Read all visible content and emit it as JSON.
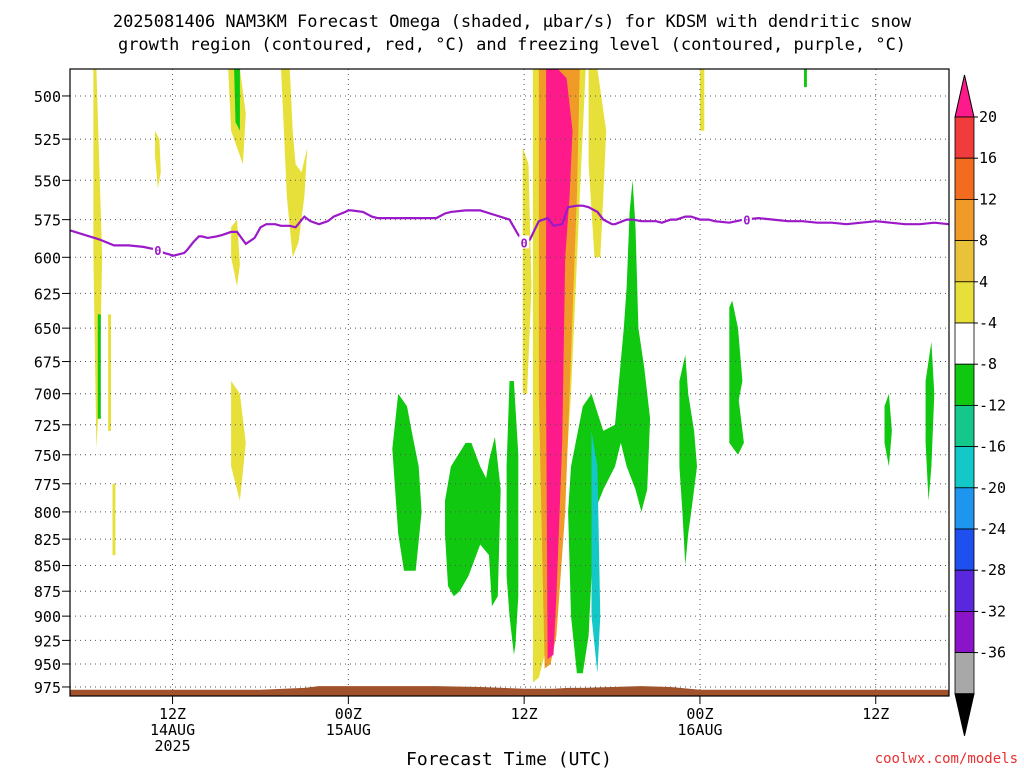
{
  "title_line1": "2025081406 NAM3KM Forecast Omega (shaded, μbar/s) for KDSM with dendritic snow",
  "title_line2": "growth region (contoured, red, °C) and freezing level (contoured, purple, °C)",
  "credit": "coolwx.com/models",
  "chart_data": {
    "type": "heatmap",
    "title": "2025081406 NAM3KM Forecast Omega (shaded, μbar/s) for KDSM with dendritic snow growth region (contoured, red, °C) and freezing level (contoured, purple, °C)",
    "xlabel": "Forecast Time (UTC)",
    "ylabel": "",
    "x_range_hours_utc_from_14AUG_00Z": [
      5,
      65
    ],
    "y_range_mb": [
      485,
      985
    ],
    "y_scale": "log-pressure, inverted",
    "grid": true,
    "y_ticks": [
      500,
      525,
      550,
      575,
      600,
      625,
      650,
      675,
      700,
      725,
      750,
      775,
      800,
      825,
      850,
      875,
      900,
      925,
      950,
      975
    ],
    "x_ticks": [
      {
        "hour": 12,
        "lines": [
          "12Z",
          "14AUG",
          "2025"
        ]
      },
      {
        "hour": 24,
        "lines": [
          "00Z",
          "15AUG"
        ]
      },
      {
        "hour": 36,
        "lines": [
          "12Z"
        ]
      },
      {
        "hour": 48,
        "lines": [
          "00Z",
          "16AUG"
        ]
      },
      {
        "hour": 60,
        "lines": [
          "12Z"
        ]
      }
    ],
    "colorbar": {
      "units": "μbar/s",
      "tick_labels": [
        "20",
        "16",
        "12",
        "8",
        "4",
        "-4",
        "-8",
        "-12",
        "-16",
        "-20",
        "-24",
        "-28",
        "-32",
        "-36"
      ],
      "bins_top_to_bottom": [
        {
          "color": "#ff1a8c"
        },
        {
          "color": "#f03c3c"
        },
        {
          "color": "#f26b1f"
        },
        {
          "color": "#f09a28"
        },
        {
          "color": "#e8c238"
        },
        {
          "color": "#e8e03a"
        },
        {
          "color": "#ffffff"
        },
        {
          "color": "#0fc80f"
        },
        {
          "color": "#14c88c"
        },
        {
          "color": "#14c8c8"
        },
        {
          "color": "#1e96f0"
        },
        {
          "color": "#1e50f0"
        },
        {
          "color": "#5a28dc"
        },
        {
          "color": "#8c14c8"
        },
        {
          "color": "#a8a8a8"
        }
      ],
      "under_color": "#000000"
    },
    "freezing_level": {
      "color": "#9b19c8",
      "label": "0",
      "label_hours": [
        11.0,
        36.0,
        51.2
      ],
      "hours": [
        5,
        7,
        8,
        9,
        10,
        11,
        11.4,
        11.8,
        12,
        12.4,
        12.8,
        13,
        13.4,
        13.8,
        14,
        14.4,
        15,
        15.4,
        16,
        16.4,
        17,
        17.6,
        18,
        18.4,
        19,
        19.4,
        20,
        20.4,
        21,
        21.4,
        22,
        22.6,
        23,
        23.8,
        24,
        24.2,
        25,
        25.6,
        26,
        26.6,
        27,
        28,
        29,
        30,
        30.6,
        31,
        32,
        33,
        34,
        35,
        35.6,
        36,
        36.4,
        37,
        37.6,
        38,
        38.6,
        39,
        39.6,
        40,
        40.4,
        40.8,
        41,
        41.4,
        42,
        42.2,
        43,
        43.4,
        44,
        44.6,
        45,
        45.4,
        46,
        46.4,
        47,
        47.4,
        48,
        48.6,
        49,
        50,
        51,
        52,
        53,
        54,
        55,
        56,
        57,
        58,
        59,
        60,
        61,
        62,
        63,
        64,
        65
      ],
      "pressures_mb": [
        582,
        588,
        592,
        592,
        593,
        595,
        597,
        598,
        599,
        598,
        597,
        595,
        590,
        586,
        586,
        587,
        586,
        585,
        583,
        583,
        591,
        587,
        580,
        578,
        578,
        579,
        579,
        580,
        573,
        576,
        578,
        576,
        573,
        570,
        569,
        569,
        570,
        573,
        574,
        574,
        574,
        574,
        574,
        574,
        571,
        570,
        569,
        569,
        572,
        575,
        585,
        590,
        588,
        576,
        574,
        579,
        578,
        567,
        566,
        566,
        567,
        569,
        570,
        575,
        578,
        578,
        575,
        575,
        576,
        576,
        576,
        577,
        575,
        575,
        573,
        573,
        575,
        575,
        576,
        577,
        575,
        574,
        575,
        576,
        576,
        577,
        577,
        578,
        577,
        576,
        577,
        578,
        578,
        577,
        578,
        578,
        577,
        578,
        576
      ]
    },
    "omega_regions": [
      {
        "color": "#e8e03a",
        "hours": [
          7.6,
          7.8,
          7.8,
          7.6,
          7.6
        ],
        "pressures_mb": [
          640,
          640,
          730,
          730,
          640
        ]
      },
      {
        "color": "#e8e03a",
        "hours": [
          6.6,
          6.8,
          7.0,
          7.2,
          7.0,
          6.8,
          6.6
        ],
        "pressures_mb": [
          485,
          485,
          540,
          600,
          700,
          745,
          600
        ]
      },
      {
        "color": "#0fc80f",
        "hours": [
          6.9,
          7.1,
          7.1,
          6.9
        ],
        "pressures_mb": [
          640,
          640,
          720,
          720
        ]
      },
      {
        "color": "#e8e03a",
        "hours": [
          7.9,
          8.1,
          8.1,
          7.9
        ],
        "pressures_mb": [
          775,
          775,
          840,
          840
        ]
      },
      {
        "color": "#e8e03a",
        "hours": [
          10.8,
          11.1,
          11.2,
          11.0,
          10.8
        ],
        "pressures_mb": [
          520,
          525,
          545,
          555,
          535
        ]
      },
      {
        "color": "#e8e03a",
        "hours": [
          16.0,
          16.4,
          16.6,
          16.4,
          16.0
        ],
        "pressures_mb": [
          580,
          575,
          605,
          620,
          600
        ]
      },
      {
        "color": "#e8e03a",
        "hours": [
          16.0,
          16.6,
          17.0,
          16.6,
          16.0
        ],
        "pressures_mb": [
          690,
          700,
          740,
          790,
          760
        ]
      },
      {
        "color": "#e8e03a",
        "hours": [
          15.8,
          16.6,
          17.0,
          16.8,
          16.0
        ],
        "pressures_mb": [
          485,
          485,
          510,
          540,
          520
        ]
      },
      {
        "color": "#0fc80f",
        "hours": [
          16.2,
          16.6,
          16.6,
          16.3
        ],
        "pressures_mb": [
          485,
          485,
          520,
          515
        ]
      },
      {
        "color": "#e8e03a",
        "hours": [
          19.4,
          20.0,
          20.2,
          20.4,
          20.8,
          21.2,
          21.0,
          20.6,
          20.2,
          19.8,
          19.6
        ],
        "pressures_mb": [
          485,
          485,
          520,
          540,
          545,
          530,
          560,
          590,
          600,
          560,
          520
        ]
      },
      {
        "color": "#0fc80f",
        "hours": [
          27.4,
          28.0,
          28.4,
          28.8,
          29.0,
          28.6,
          27.8,
          27.4,
          27.0
        ],
        "pressures_mb": [
          700,
          710,
          735,
          760,
          800,
          855,
          855,
          820,
          745
        ]
      },
      {
        "color": "#0fc80f",
        "hours": [
          32.4,
          33.0,
          33.4,
          33.6,
          34.0,
          34.4,
          34.2,
          33.8,
          33.6,
          33.0,
          32.2,
          31.6,
          31.2,
          30.8,
          30.6,
          30.6,
          31.0,
          32.0
        ],
        "pressures_mb": [
          740,
          760,
          770,
          755,
          735,
          780,
          880,
          890,
          840,
          830,
          860,
          875,
          880,
          870,
          820,
          790,
          760,
          740
        ]
      },
      {
        "color": "#e8e03a",
        "hours": [
          35.9,
          36.3,
          36.5,
          36.2,
          35.9
        ],
        "pressures_mb": [
          530,
          540,
          620,
          700,
          700
        ]
      },
      {
        "color": "#14c88c",
        "hours": [
          35.0,
          35.3,
          35.4,
          35.0,
          34.8
        ],
        "pressures_mb": [
          720,
          720,
          800,
          800,
          760
        ]
      },
      {
        "color": "#0fc80f",
        "hours": [
          35.0,
          35.3,
          35.6,
          35.6,
          35.4,
          35.3,
          35.0,
          34.8,
          34.8
        ],
        "pressures_mb": [
          690,
          690,
          750,
          880,
          930,
          940,
          900,
          860,
          760
        ]
      },
      {
        "color": "#e8e03a",
        "hours": [
          36.6,
          37.6,
          38.2,
          38.8,
          39.6,
          40.2,
          39.8,
          39.2,
          38.6,
          38.0,
          37.4,
          37.0,
          36.6,
          36.6
        ],
        "pressures_mb": [
          485,
          485,
          485,
          485,
          485,
          485,
          560,
          700,
          820,
          900,
          940,
          965,
          970,
          700
        ]
      },
      {
        "color": "#f09a28",
        "hours": [
          37.0,
          38.2,
          38.8,
          39.4,
          39.8,
          39.6,
          38.8,
          38.2,
          37.8,
          37.4,
          37.0
        ],
        "pressures_mb": [
          485,
          485,
          485,
          485,
          485,
          560,
          800,
          920,
          950,
          955,
          700
        ]
      },
      {
        "color": "#ff1a8c",
        "hours": [
          37.5,
          38.3,
          38.9,
          39.3,
          39.1,
          38.8,
          38.6,
          38.2,
          38.0,
          37.6,
          37.5
        ],
        "pressures_mb": [
          485,
          485,
          490,
          520,
          560,
          600,
          740,
          880,
          940,
          945,
          700
        ]
      },
      {
        "color": "#e8e03a",
        "hours": [
          40.4,
          41.0,
          41.6,
          41.4,
          41.2,
          40.8,
          40.4
        ],
        "pressures_mb": [
          485,
          485,
          520,
          560,
          600,
          600,
          540
        ]
      },
      {
        "color": "#0fc80f",
        "hours": [
          39.2,
          40.0,
          40.6,
          41.0,
          41.4,
          42.2,
          42.8,
          43.0,
          43.2,
          43.4,
          43.6,
          43.8,
          44.2,
          44.6,
          44.4,
          44.0,
          43.6,
          43.0,
          42.6,
          42.2,
          41.4,
          40.8,
          40.6,
          40.4,
          40.0,
          39.6,
          39.2,
          39.0
        ],
        "pressures_mb": [
          760,
          710,
          700,
          715,
          730,
          725,
          650,
          620,
          570,
          550,
          580,
          650,
          680,
          720,
          780,
          800,
          780,
          760,
          740,
          760,
          780,
          800,
          860,
          920,
          960,
          960,
          900,
          800
        ]
      },
      {
        "color": "#14c8c8",
        "hours": [
          40.6,
          41.0,
          41.2,
          41.0,
          40.6
        ],
        "pressures_mb": [
          730,
          760,
          900,
          960,
          900
        ]
      },
      {
        "color": "#e8e03a",
        "hours": [
          48.0,
          48.3,
          48.3,
          48.0
        ],
        "pressures_mb": [
          485,
          485,
          520,
          520
        ]
      },
      {
        "color": "#0fc80f",
        "hours": [
          46.6,
          47.0,
          47.2,
          47.6,
          47.8,
          47.6,
          47.4,
          47.2,
          47.0,
          46.8,
          46.6
        ],
        "pressures_mb": [
          690,
          670,
          700,
          730,
          760,
          780,
          800,
          820,
          850,
          800,
          760
        ]
      },
      {
        "color": "#0fc80f",
        "hours": [
          50.0,
          50.2,
          50.6,
          50.9,
          50.4,
          50.0
        ],
        "pressures_mb": [
          635,
          630,
          650,
          690,
          720,
          700
        ]
      },
      {
        "color": "#0fc80f",
        "hours": [
          50.0,
          50.6,
          51.0,
          50.6,
          50.0
        ],
        "pressures_mb": [
          700,
          700,
          740,
          750,
          740
        ]
      },
      {
        "color": "#0fc80f",
        "hours": [
          55.1,
          55.3,
          55.3,
          55.1
        ],
        "pressures_mb": [
          485,
          485,
          495,
          495
        ]
      },
      {
        "color": "#0fc80f",
        "hours": [
          60.6,
          60.9,
          61.1,
          60.9,
          60.6
        ],
        "pressures_mb": [
          710,
          700,
          730,
          760,
          740
        ]
      },
      {
        "color": "#0fc80f",
        "hours": [
          63.4,
          63.8,
          64.0,
          63.8,
          63.6,
          63.4
        ],
        "pressures_mb": [
          690,
          660,
          700,
          760,
          790,
          740
        ]
      }
    ],
    "terrain": {
      "color": "#a0522d",
      "hours": [
        5,
        9,
        12,
        15,
        18,
        21,
        22,
        24,
        27,
        30,
        33,
        36,
        38,
        39,
        40,
        42,
        44,
        46,
        48,
        52,
        56,
        60,
        65
      ],
      "pressures_mb": [
        978,
        978,
        978,
        978,
        978,
        976,
        974,
        974,
        974,
        974,
        975,
        977,
        977,
        976,
        976,
        975,
        974,
        975,
        978,
        978,
        978,
        978,
        978
      ]
    }
  }
}
